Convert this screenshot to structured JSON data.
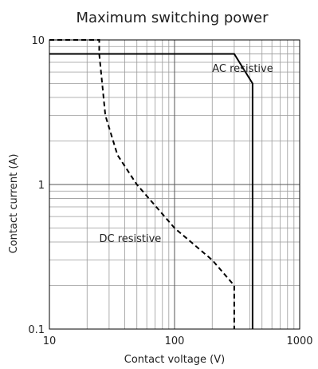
{
  "chart_data": {
    "type": "line",
    "title": "Maximum switching power",
    "xlabel": "Contact voltage (V)",
    "ylabel": "Contact current (A)",
    "xscale": "log",
    "yscale": "log",
    "xlim": [
      10,
      1000
    ],
    "ylim": [
      0.1,
      10
    ],
    "grid": true,
    "x_ticks": [
      {
        "value": 10,
        "label": "10"
      },
      {
        "value": 100,
        "label": "100"
      },
      {
        "value": 1000,
        "label": "1000"
      }
    ],
    "y_ticks": [
      {
        "value": 0.1,
        "label": "0.1"
      },
      {
        "value": 1,
        "label": "1"
      },
      {
        "value": 10,
        "label": "10"
      }
    ],
    "series": [
      {
        "name": "AC resistive",
        "style": "solid",
        "color": "#000000",
        "points": [
          {
            "x": 10,
            "y": 8
          },
          {
            "x": 300,
            "y": 8
          },
          {
            "x": 420,
            "y": 5
          },
          {
            "x": 420,
            "y": 0.1
          }
        ]
      },
      {
        "name": "DC resistive",
        "style": "dashed",
        "color": "#000000",
        "points": [
          {
            "x": 10,
            "y": 10
          },
          {
            "x": 25,
            "y": 10
          },
          {
            "x": 25,
            "y": 8
          },
          {
            "x": 28,
            "y": 3
          },
          {
            "x": 35,
            "y": 1.6
          },
          {
            "x": 50,
            "y": 1
          },
          {
            "x": 100,
            "y": 0.5
          },
          {
            "x": 200,
            "y": 0.3
          },
          {
            "x": 300,
            "y": 0.2
          },
          {
            "x": 300,
            "y": 0.1
          }
        ]
      }
    ],
    "annotations": [
      {
        "text": "AC resistive",
        "series": 0,
        "x": 200,
        "y": 6
      },
      {
        "text": "DC resistive",
        "series": 1,
        "x": 25,
        "y": 0.4
      }
    ]
  }
}
